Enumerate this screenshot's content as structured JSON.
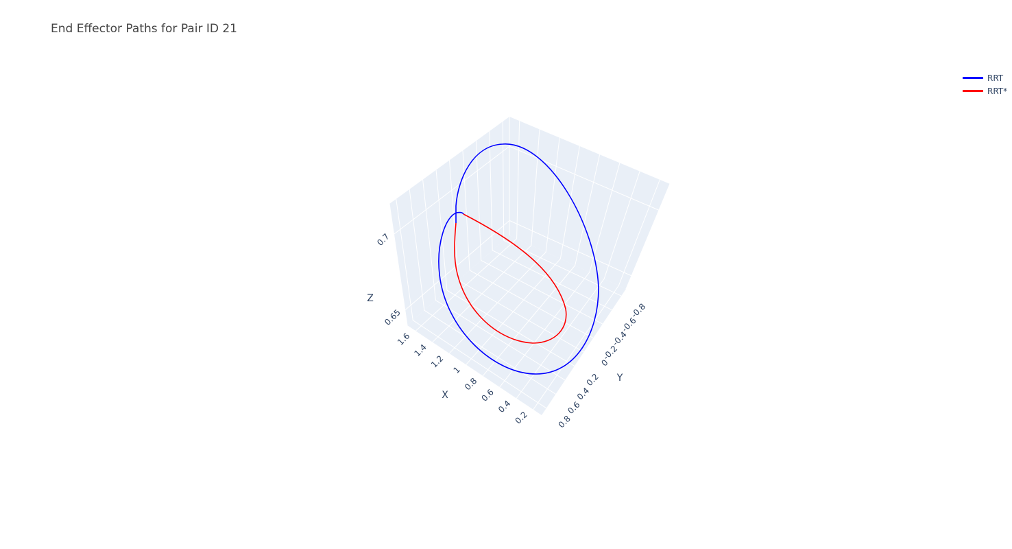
{
  "chart_data": {
    "type": "line",
    "title": "End Effector Paths for Pair ID 21",
    "axes": {
      "x": {
        "label": "X",
        "ticks": [
          "0.2",
          "0.4",
          "0.6",
          "0.8",
          "1",
          "1.2",
          "1.4",
          "1.6"
        ],
        "range": [
          0.1,
          1.7
        ]
      },
      "y": {
        "label": "Y",
        "ticks": [
          "-0.8",
          "-0.6",
          "-0.4",
          "-0.2",
          "0",
          "0.2",
          "0.4",
          "0.6",
          "0.8"
        ],
        "range": [
          -0.9,
          0.9
        ]
      },
      "z": {
        "label": "Z",
        "ticks": [
          "0.65",
          "0.7"
        ],
        "range": [
          0.64,
          0.72
        ]
      }
    },
    "series": [
      {
        "name": "RRT",
        "color": "#0000ff"
      },
      {
        "name": "RRT*",
        "color": "#ff0000"
      }
    ],
    "legend_position": "top-right",
    "grid": true,
    "scene_background": "#e5ecf6"
  }
}
